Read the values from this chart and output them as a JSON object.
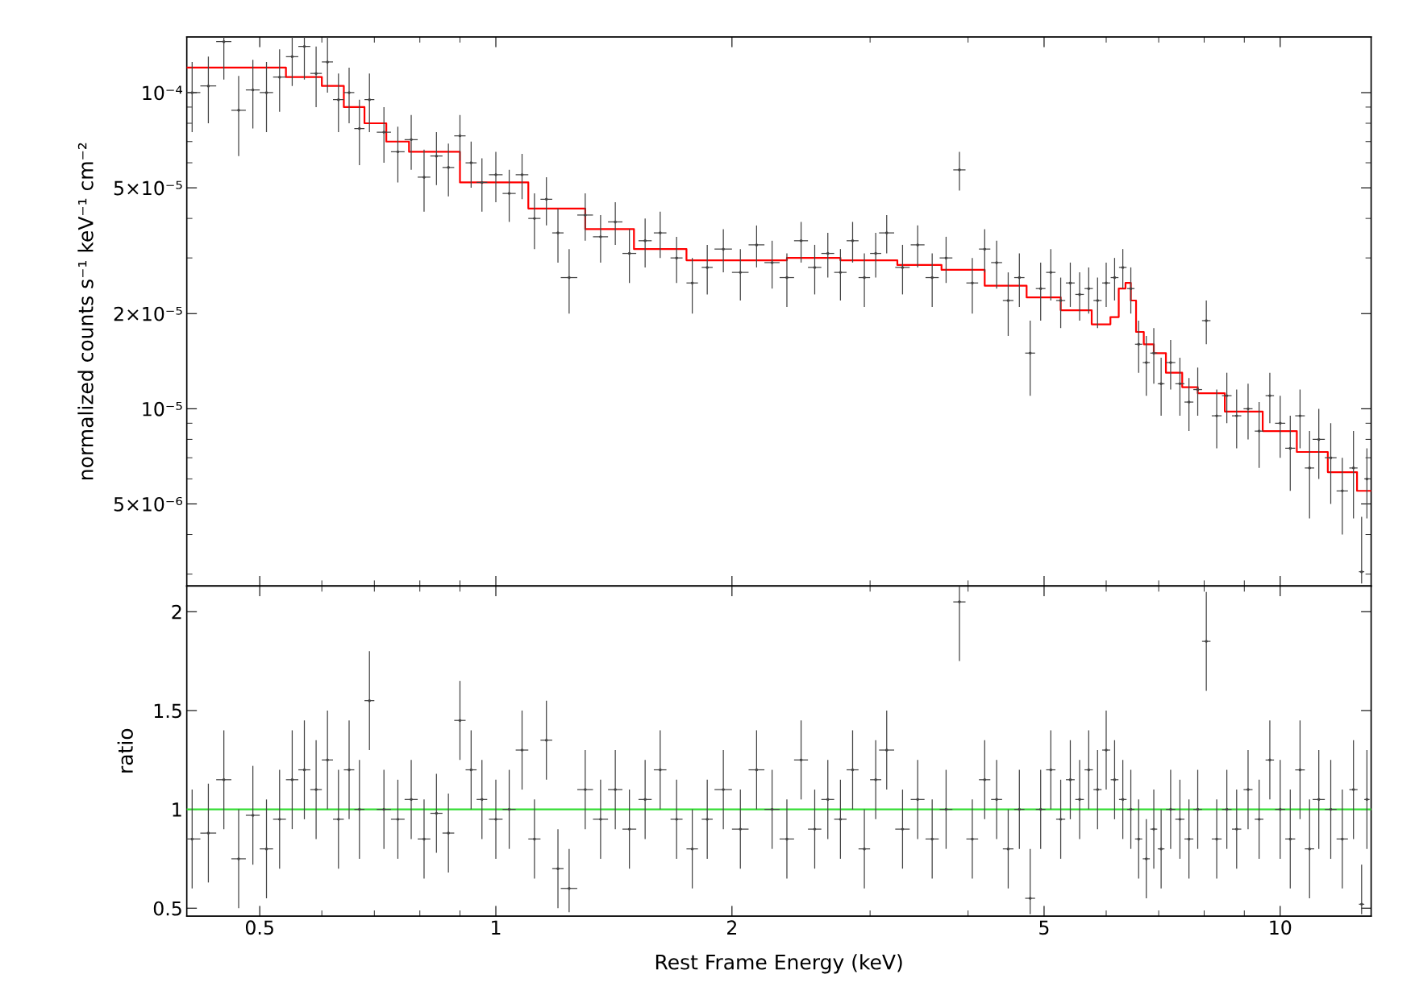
{
  "chart_data": [
    {
      "type": "scatter",
      "ylabel": "normalized counts s⁻¹ keV⁻¹ cm⁻²",
      "log": "xy",
      "tick_labels": "y",
      "xlim": [
        0.4036,
        13.06
      ],
      "ylim": [
        2.75e-06,
        0.00015
      ],
      "xticks": [
        0.5,
        1,
        2,
        5,
        10
      ],
      "yticks": [
        {
          "value": 0.0001,
          "label": "10⁻⁴"
        },
        {
          "value": 5e-05,
          "label": "5×10⁻⁵"
        },
        {
          "value": 2e-05,
          "label": "2×10⁻⁵"
        },
        {
          "value": 1e-05,
          "label": "10⁻⁵"
        },
        {
          "value": 5e-06,
          "label": "5×10⁻⁶"
        }
      ],
      "series": [
        {
          "color": "#444444",
          "marker": "circle",
          "x": [
            0.41,
            0.43,
            0.45,
            0.47,
            0.49,
            0.51,
            0.53,
            0.55,
            0.57,
            0.59,
            0.61,
            0.63,
            0.65,
            0.67,
            0.69,
            0.72,
            0.75,
            0.78,
            0.81,
            0.84,
            0.87,
            0.9,
            0.93,
            0.96,
            1.0,
            1.04,
            1.08,
            1.12,
            1.16,
            1.2,
            1.24,
            1.3,
            1.36,
            1.42,
            1.48,
            1.55,
            1.62,
            1.7,
            1.78,
            1.86,
            1.95,
            2.05,
            2.15,
            2.25,
            2.35,
            2.45,
            2.55,
            2.65,
            2.75,
            2.85,
            2.95,
            3.05,
            3.15,
            3.3,
            3.45,
            3.6,
            3.75,
            3.9,
            4.05,
            4.2,
            4.35,
            4.5,
            4.65,
            4.8,
            4.95,
            5.1,
            5.25,
            5.4,
            5.55,
            5.7,
            5.85,
            6.0,
            6.15,
            6.3,
            6.45,
            6.6,
            6.75,
            6.9,
            7.05,
            7.25,
            7.45,
            7.65,
            7.85,
            8.05,
            8.3,
            8.55,
            8.8,
            9.1,
            9.4,
            9.7,
            10.0,
            10.3,
            10.6,
            10.9,
            11.2,
            11.6,
            12.0,
            12.4,
            12.7,
            12.9
          ],
          "values": [
            0.0001,
            0.000105,
            0.000145,
            8.8e-05,
            0.000102,
            0.0001,
            0.000112,
            0.00013,
            0.00014,
            0.000115,
            0.000125,
            9.5e-05,
            0.0001,
            7.7e-05,
            9.5e-05,
            7.5e-05,
            6.5e-05,
            7.1e-05,
            5.4e-05,
            6.3e-05,
            5.8e-05,
            7.3e-05,
            6e-05,
            5.2e-05,
            5.5e-05,
            4.8e-05,
            5.5e-05,
            4e-05,
            4.6e-05,
            3.6e-05,
            2.6e-05,
            4.1e-05,
            3.5e-05,
            3.9e-05,
            3.1e-05,
            3.4e-05,
            3.6e-05,
            3e-05,
            2.5e-05,
            2.8e-05,
            3.2e-05,
            2.7e-05,
            3.3e-05,
            2.9e-05,
            2.6e-05,
            3.4e-05,
            2.8e-05,
            3.1e-05,
            2.7e-05,
            3.4e-05,
            2.6e-05,
            3.1e-05,
            3.6e-05,
            2.8e-05,
            3.3e-05,
            2.6e-05,
            3e-05,
            5.7e-05,
            2.5e-05,
            3.2e-05,
            2.9e-05,
            2.2e-05,
            2.6e-05,
            1.5e-05,
            2.4e-05,
            2.7e-05,
            2.2e-05,
            2.5e-05,
            2.3e-05,
            2.4e-05,
            2.2e-05,
            2.5e-05,
            2.6e-05,
            2.8e-05,
            2.4e-05,
            1.6e-05,
            1.4e-05,
            1.5e-05,
            1.2e-05,
            1.4e-05,
            1.2e-05,
            1.05e-05,
            1.15e-05,
            1.9e-05,
            9.5e-06,
            1.1e-05,
            9.5e-06,
            1e-05,
            8.5e-06,
            1.1e-05,
            9e-06,
            7.5e-06,
            9.5e-06,
            6.5e-06,
            8e-06,
            7e-06,
            5.5e-06,
            6.5e-06,
            3.05e-06,
            6e-06
          ],
          "errors": [
            2.5e-05,
            2.5e-05,
            [
              0.00011,
              0.00015
            ],
            2.5e-05,
            2.5e-05,
            2.5e-05,
            2.5e-05,
            [
              0.000105,
              0.00015
            ],
            [
              0.00011,
              0.00015
            ],
            2.5e-05,
            2.5e-05,
            2e-05,
            2e-05,
            1.8e-05,
            2e-05,
            1.5e-05,
            1.3e-05,
            1.4e-05,
            1.2e-05,
            1.2e-05,
            1.1e-05,
            1.2e-05,
            1e-05,
            1e-05,
            1e-05,
            9e-06,
            9e-06,
            8e-06,
            8e-06,
            7e-06,
            6e-06,
            7e-06,
            6e-06,
            6e-06,
            6e-06,
            6e-06,
            6e-06,
            5e-06,
            5e-06,
            5e-06,
            5e-06,
            5e-06,
            5e-06,
            5e-06,
            5e-06,
            5e-06,
            5e-06,
            5e-06,
            5e-06,
            5e-06,
            5e-06,
            5e-06,
            5e-06,
            5e-06,
            5e-06,
            5e-06,
            5e-06,
            8e-06,
            5e-06,
            5e-06,
            5e-06,
            5e-06,
            5e-06,
            4e-06,
            5e-06,
            5e-06,
            4e-06,
            4e-06,
            4e-06,
            4e-06,
            4e-06,
            4e-06,
            4e-06,
            4e-06,
            4e-06,
            3e-06,
            3e-06,
            3e-06,
            2.5e-06,
            2.5e-06,
            2.5e-06,
            2e-06,
            2e-06,
            3e-06,
            2e-06,
            2e-06,
            2e-06,
            2e-06,
            2e-06,
            2e-06,
            2e-06,
            2e-06,
            2e-06,
            2e-06,
            2e-06,
            2e-06,
            1.5e-06,
            2e-06,
            [
              2.8e-06,
              4.55e-06
            ],
            1.5e-06
          ],
          "xerrors": [
            0.01,
            0.01,
            0.01,
            0.01,
            0.01,
            0.01,
            0.01,
            0.01,
            0.01,
            0.01,
            0.01,
            0.01,
            0.01,
            0.01,
            0.01,
            0.015,
            0.015,
            0.015,
            0.015,
            0.015,
            0.015,
            0.015,
            0.015,
            0.015,
            0.02,
            0.02,
            0.02,
            0.02,
            0.02,
            0.02,
            0.03,
            0.03,
            0.03,
            0.03,
            0.03,
            0.03,
            0.03,
            0.03,
            0.03,
            0.03,
            0.05,
            0.05,
            0.05,
            0.05,
            0.05,
            0.05,
            0.05,
            0.05,
            0.05,
            0.05,
            0.05,
            0.05,
            0.07,
            0.07,
            0.07,
            0.07,
            0.07,
            0.07,
            0.07,
            0.07,
            0.07,
            0.07,
            0.07,
            0.07,
            0.07,
            0.07,
            0.07,
            0.07,
            0.07,
            0.07,
            0.07,
            0.07,
            0.07,
            0.07,
            0.07,
            0.07,
            0.07,
            0.07,
            0.07,
            0.1,
            0.1,
            0.1,
            0.1,
            0.1,
            0.12,
            0.12,
            0.12,
            0.12,
            0.12,
            0.12,
            0.15,
            0.15,
            0.15,
            0.15,
            0.2,
            0.2,
            0.2,
            0.15,
            0.1,
            0.1
          ]
        },
        {
          "type": "step",
          "color": "#ff0000",
          "x": [
            0.4036,
            0.5,
            0.58,
            0.62,
            0.66,
            0.7,
            0.75,
            0.8,
            1.0,
            1.2,
            1.4,
            1.6,
            1.9,
            2.2,
            2.5,
            3.0,
            3.5,
            3.9,
            4.5,
            5.0,
            5.5,
            6.0,
            6.15,
            6.3,
            6.4,
            6.5,
            6.6,
            6.8,
            7.0,
            7.3,
            7.7,
            8.0,
            9.0,
            10.0,
            11.0,
            12.0,
            13.06
          ],
          "values": [
            0.00012,
            0.00012,
            0.000112,
            0.000105,
            9e-05,
            8e-05,
            7e-05,
            6.5e-05,
            5.2e-05,
            4.3e-05,
            3.7e-05,
            3.2e-05,
            2.95e-05,
            2.95e-05,
            3e-05,
            2.95e-05,
            2.85e-05,
            2.75e-05,
            2.45e-05,
            2.25e-05,
            2.05e-05,
            1.85e-05,
            1.95e-05,
            2.4e-05,
            2.5e-05,
            2.2e-05,
            1.75e-05,
            1.6e-05,
            1.5e-05,
            1.3e-05,
            1.17e-05,
            1.12e-05,
            9.8e-06,
            8.5e-06,
            7.3e-06,
            6.3e-06,
            5.5e-06
          ]
        }
      ]
    },
    {
      "type": "scatter",
      "xlabel": "Rest Frame Energy (keV)",
      "ylabel": "ratio",
      "log": "x",
      "xlim": [
        0.4036,
        13.06
      ],
      "ylim": [
        0.46,
        2.13
      ],
      "xticks": [
        0.5,
        1,
        2,
        5,
        10
      ],
      "yticks": [
        0.5,
        1,
        1.5,
        2
      ],
      "ref_lines": [
        {
          "axis": "y",
          "value": 1,
          "color": "#33dd33"
        }
      ],
      "series": [
        {
          "color": "#444444",
          "marker": "circle",
          "x": [
            0.41,
            0.43,
            0.45,
            0.47,
            0.49,
            0.51,
            0.53,
            0.55,
            0.57,
            0.59,
            0.61,
            0.63,
            0.65,
            0.67,
            0.69,
            0.72,
            0.75,
            0.78,
            0.81,
            0.84,
            0.87,
            0.9,
            0.93,
            0.96,
            1.0,
            1.04,
            1.08,
            1.12,
            1.16,
            1.2,
            1.24,
            1.3,
            1.36,
            1.42,
            1.48,
            1.55,
            1.62,
            1.7,
            1.78,
            1.86,
            1.95,
            2.05,
            2.15,
            2.25,
            2.35,
            2.45,
            2.55,
            2.65,
            2.75,
            2.85,
            2.95,
            3.05,
            3.15,
            3.3,
            3.45,
            3.6,
            3.75,
            3.9,
            4.05,
            4.2,
            4.35,
            4.5,
            4.65,
            4.8,
            4.95,
            5.1,
            5.25,
            5.4,
            5.55,
            5.7,
            5.85,
            6.0,
            6.15,
            6.3,
            6.45,
            6.6,
            6.75,
            6.9,
            7.05,
            7.25,
            7.45,
            7.65,
            7.85,
            8.05,
            8.3,
            8.55,
            8.8,
            9.1,
            9.4,
            9.7,
            10.0,
            10.3,
            10.6,
            10.9,
            11.2,
            11.6,
            12.0,
            12.4,
            12.7,
            12.9
          ],
          "values": [
            0.85,
            0.88,
            1.15,
            0.75,
            0.97,
            0.8,
            0.95,
            1.15,
            1.2,
            1.1,
            1.25,
            0.95,
            1.2,
            1.0,
            1.55,
            1.0,
            0.95,
            1.05,
            0.85,
            0.98,
            0.88,
            1.45,
            1.2,
            1.05,
            0.95,
            1.0,
            1.3,
            0.85,
            1.35,
            0.7,
            0.6,
            1.1,
            0.95,
            1.1,
            0.9,
            1.05,
            1.2,
            0.95,
            0.8,
            0.95,
            1.1,
            0.9,
            1.2,
            1.0,
            0.85,
            1.25,
            0.9,
            1.05,
            0.95,
            1.2,
            0.8,
            1.15,
            1.3,
            0.9,
            1.05,
            0.85,
            1.0,
            2.05,
            0.85,
            1.15,
            1.05,
            0.8,
            1.0,
            0.55,
            1.0,
            1.2,
            0.95,
            1.15,
            1.05,
            1.2,
            1.1,
            1.3,
            1.15,
            1.05,
            1.0,
            0.85,
            0.75,
            0.9,
            0.8,
            1.0,
            0.95,
            0.85,
            1.0,
            1.85,
            0.85,
            1.0,
            0.9,
            1.1,
            0.95,
            1.25,
            1.0,
            0.85,
            1.2,
            0.8,
            1.05,
            1.0,
            0.85,
            1.1,
            0.52,
            1.05
          ],
          "errors": [
            0.25,
            0.25,
            0.25,
            0.25,
            0.25,
            0.25,
            0.25,
            0.25,
            0.25,
            0.25,
            0.25,
            0.25,
            0.25,
            0.25,
            0.25,
            0.2,
            0.2,
            0.2,
            0.2,
            0.2,
            0.2,
            0.2,
            0.2,
            0.2,
            0.2,
            0.2,
            0.2,
            0.2,
            0.2,
            0.2,
            [
              0.48,
              0.8
            ],
            0.2,
            0.2,
            0.2,
            0.2,
            0.2,
            0.2,
            0.2,
            0.2,
            0.2,
            0.2,
            0.2,
            0.2,
            0.2,
            0.2,
            0.2,
            0.2,
            0.2,
            0.2,
            0.2,
            0.2,
            0.2,
            0.2,
            0.2,
            0.2,
            0.2,
            0.2,
            [
              1.75,
              2.13
            ],
            0.2,
            0.2,
            0.2,
            0.2,
            0.2,
            [
              0.47,
              0.8
            ],
            0.2,
            0.2,
            0.2,
            0.2,
            0.2,
            0.2,
            0.2,
            0.2,
            0.2,
            0.2,
            0.2,
            0.2,
            0.2,
            0.2,
            0.2,
            0.2,
            0.2,
            0.2,
            0.2,
            0.25,
            0.2,
            0.2,
            0.2,
            0.2,
            0.2,
            0.2,
            0.25,
            0.25,
            0.25,
            0.25,
            0.25,
            0.25,
            0.25,
            0.25,
            [
              0.47,
              0.72
            ],
            0.25
          ],
          "xerrors": [
            0.01,
            0.01,
            0.01,
            0.01,
            0.01,
            0.01,
            0.01,
            0.01,
            0.01,
            0.01,
            0.01,
            0.01,
            0.01,
            0.01,
            0.01,
            0.015,
            0.015,
            0.015,
            0.015,
            0.015,
            0.015,
            0.015,
            0.015,
            0.015,
            0.02,
            0.02,
            0.02,
            0.02,
            0.02,
            0.02,
            0.03,
            0.03,
            0.03,
            0.03,
            0.03,
            0.03,
            0.03,
            0.03,
            0.03,
            0.03,
            0.05,
            0.05,
            0.05,
            0.05,
            0.05,
            0.05,
            0.05,
            0.05,
            0.05,
            0.05,
            0.05,
            0.05,
            0.07,
            0.07,
            0.07,
            0.07,
            0.07,
            0.07,
            0.07,
            0.07,
            0.07,
            0.07,
            0.07,
            0.07,
            0.07,
            0.07,
            0.07,
            0.07,
            0.07,
            0.07,
            0.07,
            0.07,
            0.07,
            0.07,
            0.07,
            0.07,
            0.07,
            0.07,
            0.07,
            0.1,
            0.1,
            0.1,
            0.1,
            0.1,
            0.12,
            0.12,
            0.12,
            0.12,
            0.12,
            0.12,
            0.15,
            0.15,
            0.15,
            0.15,
            0.2,
            0.2,
            0.2,
            0.15,
            0.1,
            0.1
          ]
        }
      ]
    }
  ]
}
